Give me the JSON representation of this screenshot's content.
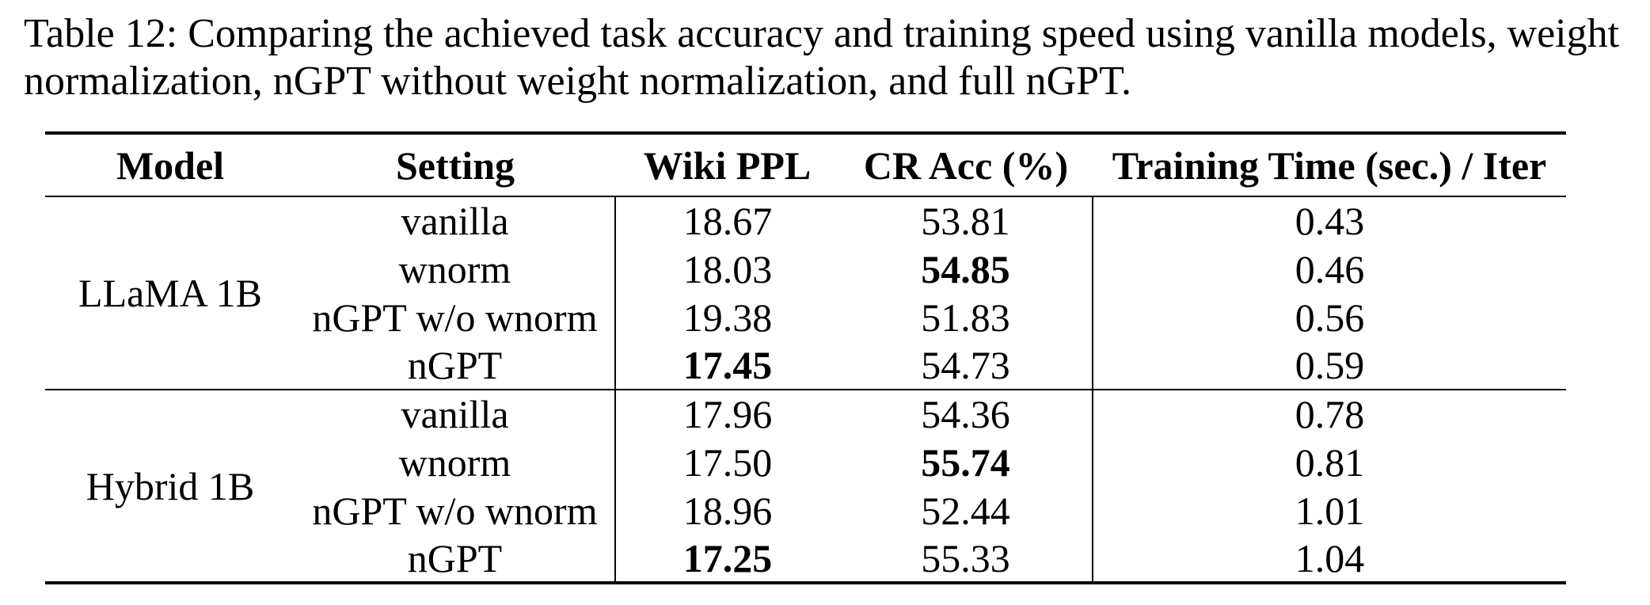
{
  "page": {
    "background": "#ffffff",
    "text_color": "#000000"
  },
  "caption": {
    "full_text": "Table 12: Comparing the achieved task accuracy and training speed using vanilla models, weight normalization, nGPT without weight normalization, and full nGPT.",
    "line1": "Table 12: Comparing the achieved task accuracy and training speed using vanilla models, weight",
    "line2": "normalization, nGPT without weight normalization, and full nGPT."
  },
  "table": {
    "headers": [
      "Model",
      "Setting",
      "Wiki PPL",
      "CR Acc (%)",
      "Training Time (sec.) / Iter"
    ],
    "groups": [
      {
        "model": "LLaMA 1B",
        "rows": [
          {
            "setting": "vanilla",
            "wiki_ppl": "18.67",
            "wiki_bold": false,
            "cr_acc": "53.81",
            "cr_bold": false,
            "train_time": "0.43"
          },
          {
            "setting": "wnorm",
            "wiki_ppl": "18.03",
            "wiki_bold": false,
            "cr_acc": "54.85",
            "cr_bold": true,
            "train_time": "0.46"
          },
          {
            "setting": "nGPT w/o wnorm",
            "wiki_ppl": "19.38",
            "wiki_bold": false,
            "cr_acc": "51.83",
            "cr_bold": false,
            "train_time": "0.56"
          },
          {
            "setting": "nGPT",
            "wiki_ppl": "17.45",
            "wiki_bold": true,
            "cr_acc": "54.73",
            "cr_bold": false,
            "train_time": "0.59"
          }
        ]
      },
      {
        "model": "Hybrid 1B",
        "rows": [
          {
            "setting": "vanilla",
            "wiki_ppl": "17.96",
            "wiki_bold": false,
            "cr_acc": "54.36",
            "cr_bold": false,
            "train_time": "0.78"
          },
          {
            "setting": "wnorm",
            "wiki_ppl": "17.50",
            "wiki_bold": false,
            "cr_acc": "55.74",
            "cr_bold": true,
            "train_time": "0.81"
          },
          {
            "setting": "nGPT w/o wnorm",
            "wiki_ppl": "18.96",
            "wiki_bold": false,
            "cr_acc": "52.44",
            "cr_bold": false,
            "train_time": "1.01"
          },
          {
            "setting": "nGPT",
            "wiki_ppl": "17.25",
            "wiki_bold": true,
            "cr_acc": "55.33",
            "cr_bold": false,
            "train_time": "1.04"
          }
        ]
      }
    ]
  }
}
